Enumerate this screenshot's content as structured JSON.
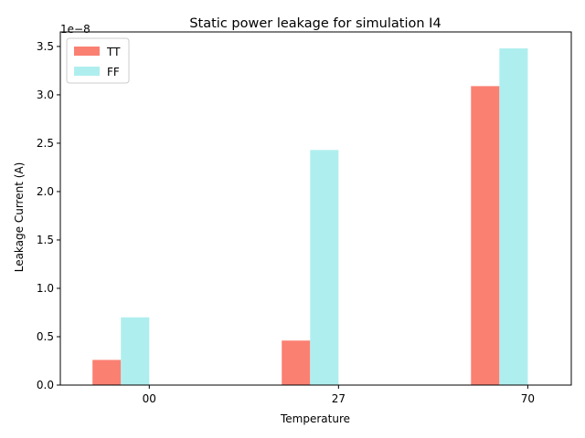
{
  "chart_data": {
    "type": "bar",
    "title": "Static power leakage for simulation I4",
    "xlabel": "Temperature",
    "ylabel": "Leakage Current (A)",
    "offset_label": "1e−8",
    "categories": [
      "00",
      "27",
      "70"
    ],
    "category_positions": [
      0,
      1,
      2
    ],
    "bar_offset_units": [
      -0.3,
      -0.15
    ],
    "bar_width_units": 0.15,
    "xlim": [
      -0.47,
      2.23
    ],
    "ylim": [
      0,
      3.65
    ],
    "yticks": [
      0.0,
      0.5,
      1.0,
      1.5,
      2.0,
      2.5,
      3.0,
      3.5
    ],
    "ytick_labels": [
      "0.0",
      "0.5",
      "1.0",
      "1.5",
      "2.0",
      "2.5",
      "3.0",
      "3.5"
    ],
    "legend_position": "top-left",
    "grid": false,
    "series": [
      {
        "name": "TT",
        "color": "#fa8072",
        "values": [
          0.26,
          0.46,
          3.09
        ]
      },
      {
        "name": "FF",
        "color": "#afeeee",
        "values": [
          0.7,
          2.43,
          3.48
        ]
      }
    ]
  }
}
